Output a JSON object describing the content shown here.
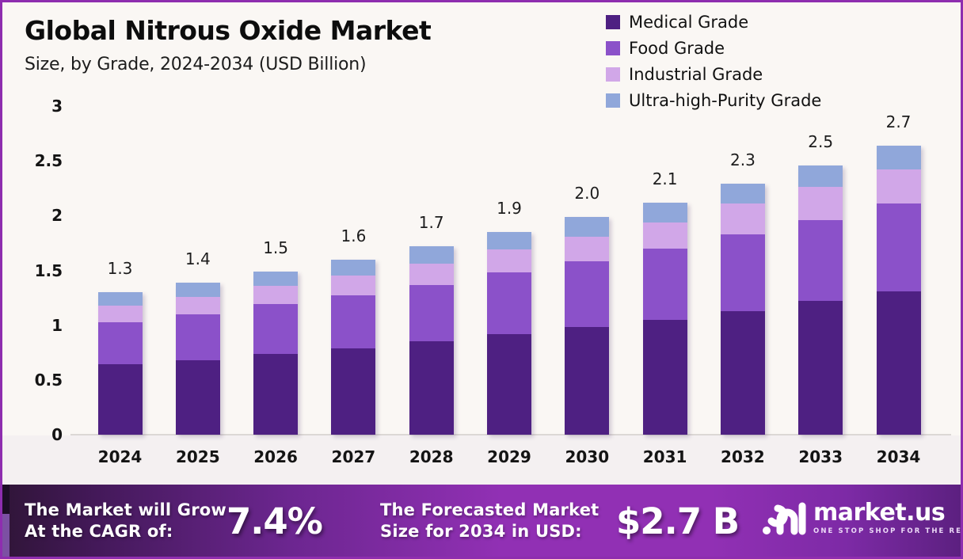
{
  "title": "Global Nitrous Oxide Market",
  "subtitle": "Size, by Grade, 2024-2034 (USD Billion)",
  "colors": {
    "medical": "#4e2082",
    "food": "#8b51c9",
    "industrial": "#d1a7e8",
    "ultra_high_purity": "#90a7da",
    "frame_border": "#8e2daf",
    "background": "#faf7f4",
    "banner_bright": "#9130b4",
    "banner_dark": "#301538"
  },
  "legend": [
    {
      "label": "Medical Grade",
      "color": "#4e2082"
    },
    {
      "label": "Food Grade",
      "color": "#8b51c9"
    },
    {
      "label": "Industrial Grade",
      "color": "#d1a7e8"
    },
    {
      "label": "Ultra-high-Purity Grade",
      "color": "#90a7da"
    }
  ],
  "chart_data": {
    "type": "bar",
    "stacked": true,
    "title": "Global Nitrous Oxide Market Size, by Grade, 2024-2034 (USD Billion)",
    "xlabel": "",
    "ylabel": "",
    "ylim": [
      0,
      3
    ],
    "yticks": [
      "0",
      "0.5",
      "1",
      "1.5",
      "2",
      "2.5",
      "3"
    ],
    "grid": false,
    "legend_position": "top-right",
    "categories": [
      "2024",
      "2025",
      "2026",
      "2027",
      "2028",
      "2029",
      "2030",
      "2031",
      "2032",
      "2033",
      "2034"
    ],
    "series": [
      {
        "name": "Medical Grade",
        "color": "#4e2082",
        "values": [
          0.64,
          0.68,
          0.74,
          0.79,
          0.85,
          0.92,
          0.98,
          1.05,
          1.13,
          1.22,
          1.31
        ]
      },
      {
        "name": "Food Grade",
        "color": "#8b51c9",
        "values": [
          0.39,
          0.42,
          0.45,
          0.48,
          0.52,
          0.56,
          0.6,
          0.65,
          0.7,
          0.74,
          0.8
        ]
      },
      {
        "name": "Industrial Grade",
        "color": "#d1a7e8",
        "values": [
          0.15,
          0.16,
          0.17,
          0.18,
          0.19,
          0.21,
          0.23,
          0.24,
          0.28,
          0.3,
          0.31
        ]
      },
      {
        "name": "Ultra-high-Purity Grade",
        "color": "#90a7da",
        "values": [
          0.12,
          0.13,
          0.13,
          0.15,
          0.16,
          0.16,
          0.18,
          0.18,
          0.18,
          0.2,
          0.22
        ]
      }
    ],
    "total_labels": [
      "1.3",
      "1.4",
      "1.5",
      "1.6",
      "1.7",
      "1.9",
      "2.0",
      "2.1",
      "2.3",
      "2.5",
      "2.7"
    ]
  },
  "footer": {
    "cagr_label_line1": "The Market will Grow",
    "cagr_label_line2": "At the CAGR of:",
    "cagr_value": "7.4%",
    "forecast_label_line1": "The Forecasted Market",
    "forecast_label_line2": "Size for 2034 in USD:",
    "forecast_value": "$2.7 B",
    "brand": "market.us",
    "brand_tagline": "ONE STOP SHOP FOR THE REPORTS"
  }
}
